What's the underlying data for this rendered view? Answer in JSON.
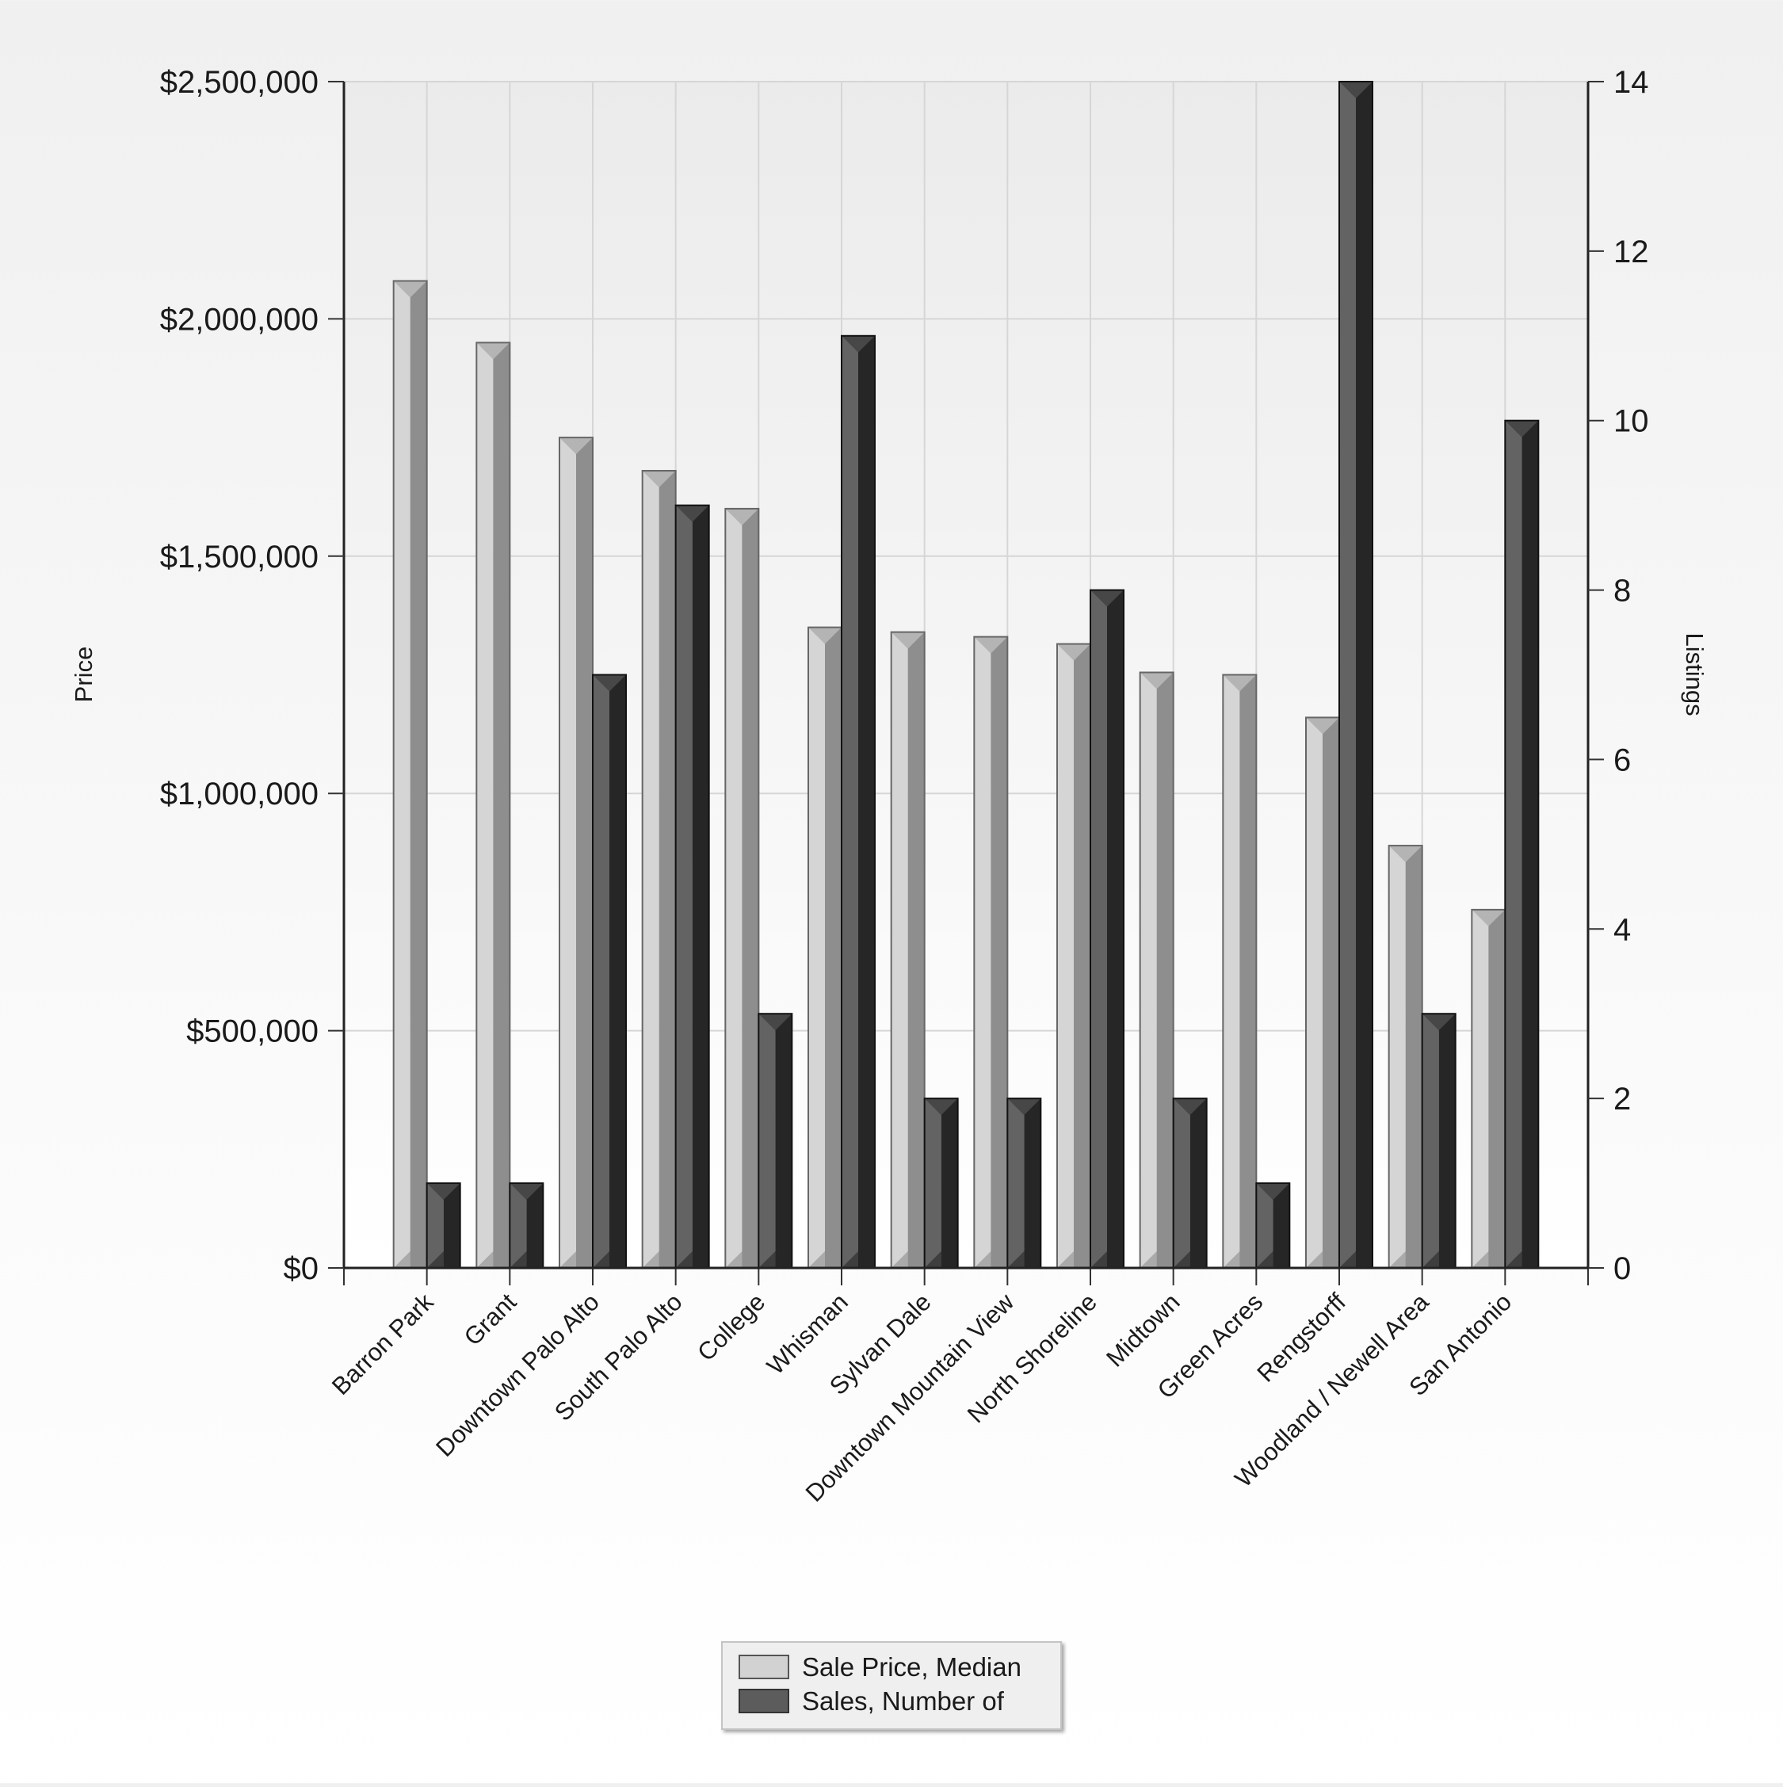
{
  "chart_data": {
    "type": "bar",
    "title": "",
    "xlabel": "",
    "ylabel": "Price",
    "y2label": "Listings",
    "categories": [
      "Barron Park",
      "Grant",
      "Downtown Palo Alto",
      "South Palo Alto",
      "College",
      "Whisman",
      "Sylvan Dale",
      "Downtown Mountain View",
      "North Shoreline",
      "Midtown",
      "Green Acres",
      "Rengstorff",
      "Woodland / Newell Area",
      "San Antonio"
    ],
    "series": [
      {
        "name": "Sale Price, Median",
        "axis": "left",
        "color": "#d2d2d2",
        "values": [
          2080000,
          1950000,
          1750000,
          1680000,
          1600000,
          1350000,
          1340000,
          1330000,
          1315000,
          1255000,
          1250000,
          1160000,
          890000,
          755000
        ]
      },
      {
        "name": "Sales, Number of",
        "axis": "right",
        "color": "#5c5c5c",
        "values": [
          1,
          1,
          7,
          9,
          3,
          11,
          2,
          2,
          8,
          2,
          1,
          14,
          3,
          10
        ]
      }
    ],
    "ylim": [
      0,
      2500000
    ],
    "y2lim": [
      0,
      14
    ],
    "yticks": [
      "$0",
      "$500,000",
      "$1,000,000",
      "$1,500,000",
      "$2,000,000",
      "$2,500,000"
    ],
    "y2ticks": [
      "0",
      "2",
      "4",
      "6",
      "8",
      "10",
      "12",
      "14"
    ],
    "grid": true,
    "legend_position": "bottom-center"
  }
}
